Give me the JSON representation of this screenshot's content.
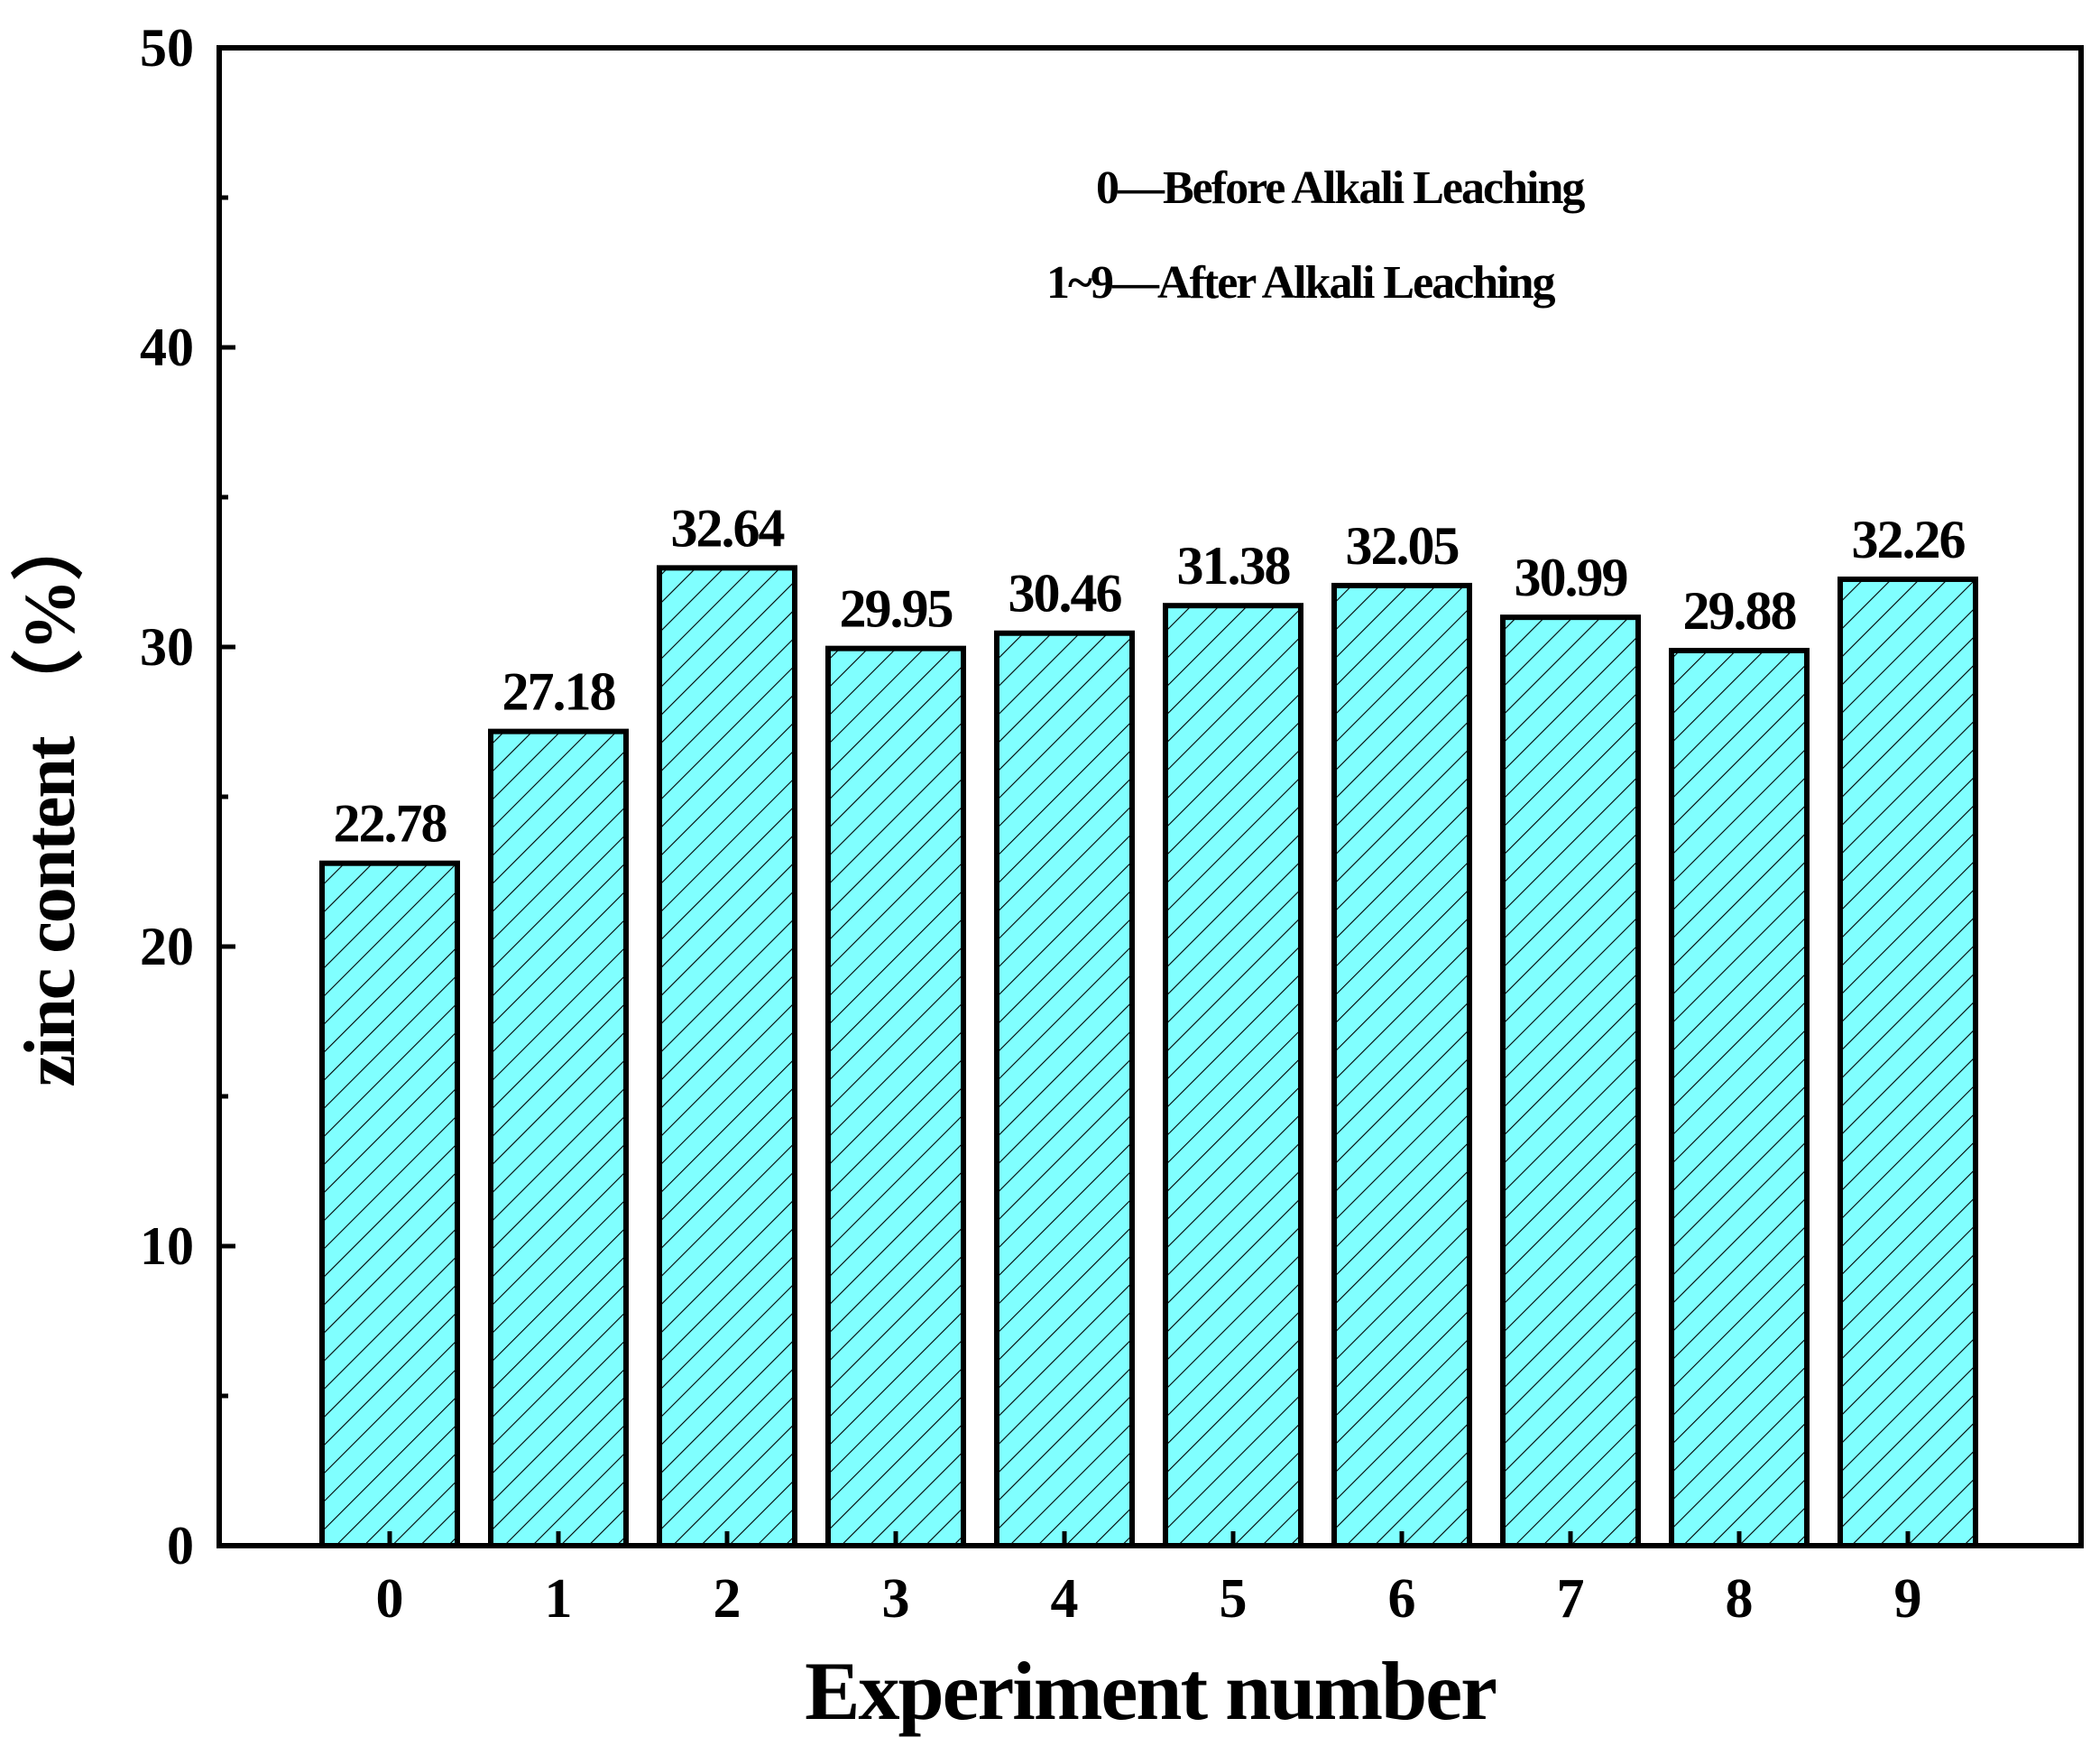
{
  "chart_data": {
    "type": "bar",
    "categories": [
      "0",
      "1",
      "2",
      "3",
      "4",
      "5",
      "6",
      "7",
      "8",
      "9"
    ],
    "values": [
      22.78,
      27.18,
      32.64,
      29.95,
      30.46,
      31.38,
      32.05,
      30.99,
      29.88,
      32.26
    ],
    "data_labels": [
      "22.78",
      "27.18",
      "32.64",
      "29.95",
      "30.46",
      "31.38",
      "32.05",
      "30.99",
      "29.88",
      "32.26"
    ],
    "xlabel": "Experiment number",
    "ylabel": "zinc content （%）",
    "ylim": [
      0,
      50
    ],
    "yticks": [
      "0",
      "10",
      "20",
      "30",
      "40",
      "50"
    ],
    "annotations": [
      "0—Before Alkali  Leaching",
      "1~9—After Alkali   Leaching"
    ],
    "bar_fill": "#80ffff",
    "bar_hatch": "diagonal",
    "bar_edge": "#000000",
    "grid": false
  }
}
